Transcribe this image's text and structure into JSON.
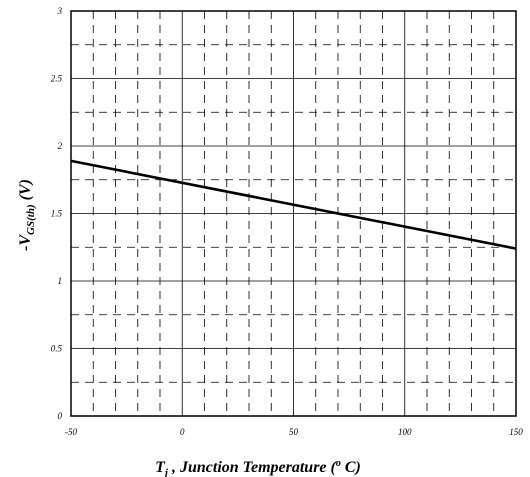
{
  "chart_data": {
    "type": "line",
    "title": "",
    "xlabel": {
      "main": "T",
      "sub": "j",
      "rest": " , Junction Temperature (",
      "sup": "o",
      "end": " C)"
    },
    "ylabel": {
      "main": "-V",
      "sub": "GS(th)",
      "rest": " (V)"
    },
    "xlim": [
      -50,
      150
    ],
    "ylim": [
      0,
      3
    ],
    "x_ticks": [
      -50,
      0,
      50,
      100,
      150
    ],
    "x_tick_labels": [
      "-50",
      "0",
      "50",
      "100",
      "150"
    ],
    "y_ticks": [
      0,
      0.5,
      1,
      1.5,
      2,
      2.5,
      3
    ],
    "y_tick_labels": [
      "0",
      "0.5",
      "1",
      "1.5",
      "2",
      "2.5",
      "3"
    ],
    "grid": {
      "major": "solid",
      "minor": "dashed",
      "x_minor_step": 10,
      "y_minor_step": 0.25
    },
    "series": [
      {
        "x": [
          -50,
          150
        ],
        "y": [
          1.89,
          1.24
        ]
      }
    ]
  }
}
